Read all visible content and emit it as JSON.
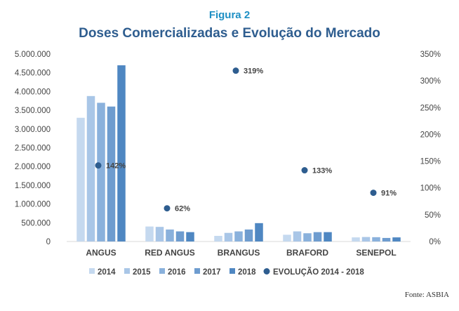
{
  "figure_label": "Figura 2",
  "source": "Fonte: ASBIA",
  "chart_data": {
    "type": "bar",
    "title": "Doses Comercializadas e Evolução do Mercado",
    "categories": [
      "ANGUS",
      "RED ANGUS",
      "BRANGUS",
      "BRAFORD",
      "SENEPOL"
    ],
    "series": [
      {
        "name": "2014",
        "color": "#c5d9ef",
        "values": [
          3300000,
          400000,
          150000,
          180000,
          110000
        ]
      },
      {
        "name": "2015",
        "color": "#a9c6e7",
        "values": [
          3880000,
          390000,
          230000,
          270000,
          120000
        ]
      },
      {
        "name": "2016",
        "color": "#8ab1dc",
        "values": [
          3700000,
          320000,
          270000,
          220000,
          115000
        ]
      },
      {
        "name": "2017",
        "color": "#6e9ccf",
        "values": [
          3600000,
          270000,
          320000,
          250000,
          95000
        ]
      },
      {
        "name": "2018",
        "color": "#4f87c2",
        "values": [
          4700000,
          250000,
          490000,
          250000,
          110000
        ]
      }
    ],
    "evolution": {
      "name": "EVOLUÇÃO 2014 - 2018",
      "color": "#2e5d8f",
      "values": [
        142,
        62,
        319,
        133,
        91
      ],
      "labels": [
        "142%",
        "62%",
        "319%",
        "133%",
        "91%"
      ]
    },
    "y_left": {
      "min": 0,
      "max": 5000000,
      "tick_labels": [
        "0",
        "500.000",
        "1.000.000",
        "1.500.000",
        "2.000.000",
        "2.500.000",
        "3.000.000",
        "3.500.000",
        "4.000.000",
        "4.500.000",
        "5.000.000"
      ]
    },
    "y_right": {
      "min": 0,
      "max": 350,
      "tick_labels": [
        "0%",
        "50%",
        "100%",
        "150%",
        "200%",
        "250%",
        "300%",
        "350%"
      ]
    },
    "legend_position": "bottom",
    "grid": false
  }
}
